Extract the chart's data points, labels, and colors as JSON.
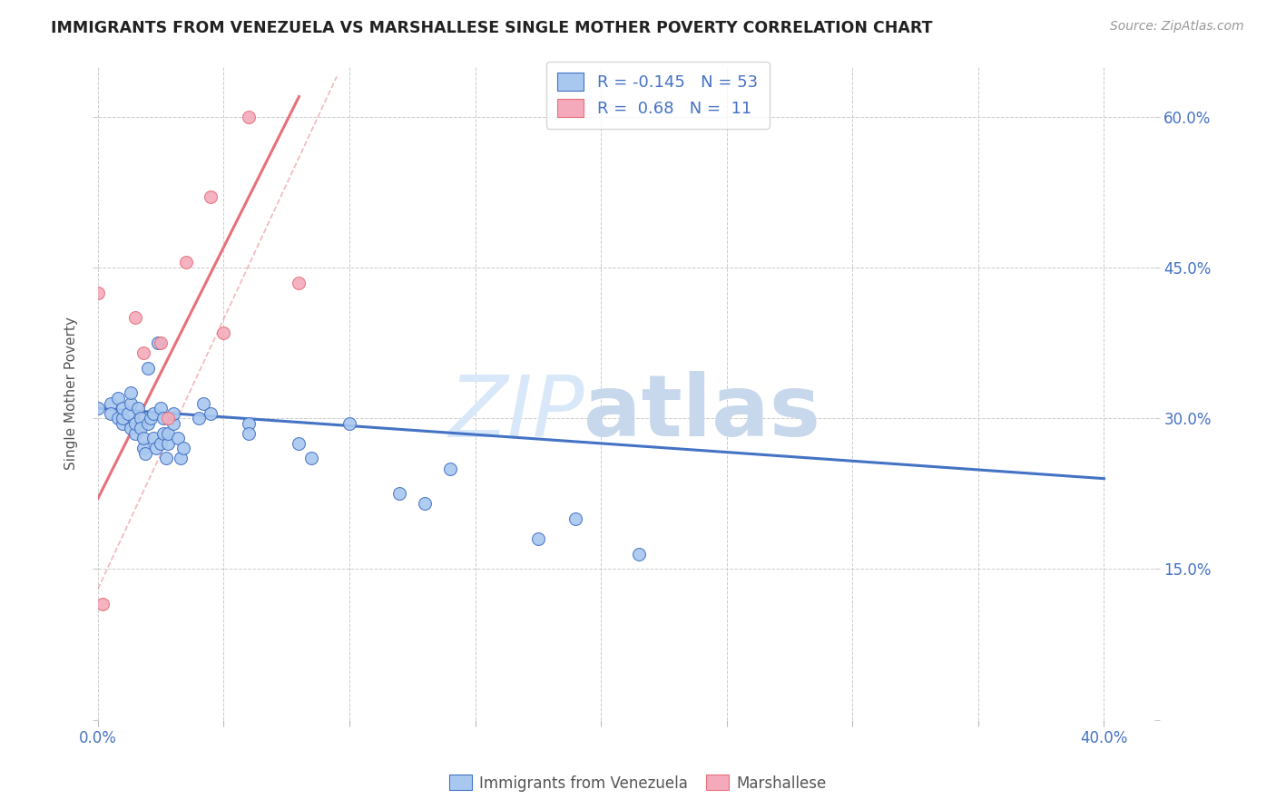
{
  "title": "IMMIGRANTS FROM VENEZUELA VS MARSHALLESE SINGLE MOTHER POVERTY CORRELATION CHART",
  "source": "Source: ZipAtlas.com",
  "ylabel": "Single Mother Poverty",
  "xlim": [
    0.0,
    0.42
  ],
  "ylim": [
    0.0,
    0.65
  ],
  "blue_R": -0.145,
  "blue_N": 53,
  "pink_R": 0.68,
  "pink_N": 11,
  "watermark_zip": "ZIP",
  "watermark_atlas": "atlas",
  "blue_color": "#A8C8F0",
  "pink_color": "#F4AABB",
  "blue_line_color": "#4472C4",
  "pink_line_color": "#E8707A",
  "blue_scatter": [
    [
      0.0,
      0.31
    ],
    [
      0.005,
      0.315
    ],
    [
      0.005,
      0.305
    ],
    [
      0.008,
      0.32
    ],
    [
      0.008,
      0.3
    ],
    [
      0.01,
      0.295
    ],
    [
      0.01,
      0.3
    ],
    [
      0.01,
      0.31
    ],
    [
      0.012,
      0.305
    ],
    [
      0.013,
      0.29
    ],
    [
      0.013,
      0.315
    ],
    [
      0.013,
      0.325
    ],
    [
      0.015,
      0.285
    ],
    [
      0.015,
      0.295
    ],
    [
      0.016,
      0.31
    ],
    [
      0.017,
      0.3
    ],
    [
      0.017,
      0.29
    ],
    [
      0.018,
      0.27
    ],
    [
      0.018,
      0.28
    ],
    [
      0.019,
      0.265
    ],
    [
      0.02,
      0.35
    ],
    [
      0.02,
      0.295
    ],
    [
      0.021,
      0.3
    ],
    [
      0.022,
      0.305
    ],
    [
      0.022,
      0.28
    ],
    [
      0.023,
      0.27
    ],
    [
      0.024,
      0.375
    ],
    [
      0.025,
      0.275
    ],
    [
      0.025,
      0.31
    ],
    [
      0.026,
      0.285
    ],
    [
      0.026,
      0.3
    ],
    [
      0.027,
      0.26
    ],
    [
      0.028,
      0.275
    ],
    [
      0.028,
      0.285
    ],
    [
      0.03,
      0.295
    ],
    [
      0.03,
      0.305
    ],
    [
      0.032,
      0.28
    ],
    [
      0.033,
      0.26
    ],
    [
      0.034,
      0.27
    ],
    [
      0.04,
      0.3
    ],
    [
      0.042,
      0.315
    ],
    [
      0.045,
      0.305
    ],
    [
      0.06,
      0.295
    ],
    [
      0.06,
      0.285
    ],
    [
      0.08,
      0.275
    ],
    [
      0.085,
      0.26
    ],
    [
      0.1,
      0.295
    ],
    [
      0.12,
      0.225
    ],
    [
      0.13,
      0.215
    ],
    [
      0.14,
      0.25
    ],
    [
      0.175,
      0.18
    ],
    [
      0.19,
      0.2
    ],
    [
      0.215,
      0.165
    ]
  ],
  "pink_scatter": [
    [
      0.0,
      0.425
    ],
    [
      0.002,
      0.115
    ],
    [
      0.015,
      0.4
    ],
    [
      0.018,
      0.365
    ],
    [
      0.025,
      0.375
    ],
    [
      0.028,
      0.3
    ],
    [
      0.035,
      0.455
    ],
    [
      0.045,
      0.52
    ],
    [
      0.05,
      0.385
    ],
    [
      0.06,
      0.6
    ],
    [
      0.08,
      0.435
    ]
  ],
  "blue_trendline": [
    [
      0.0,
      0.31
    ],
    [
      0.4,
      0.24
    ]
  ],
  "pink_trendline": [
    [
      0.0,
      0.22
    ],
    [
      0.08,
      0.62
    ]
  ],
  "pink_trendline_ext": [
    [
      0.0,
      0.13
    ],
    [
      0.095,
      0.64
    ]
  ]
}
